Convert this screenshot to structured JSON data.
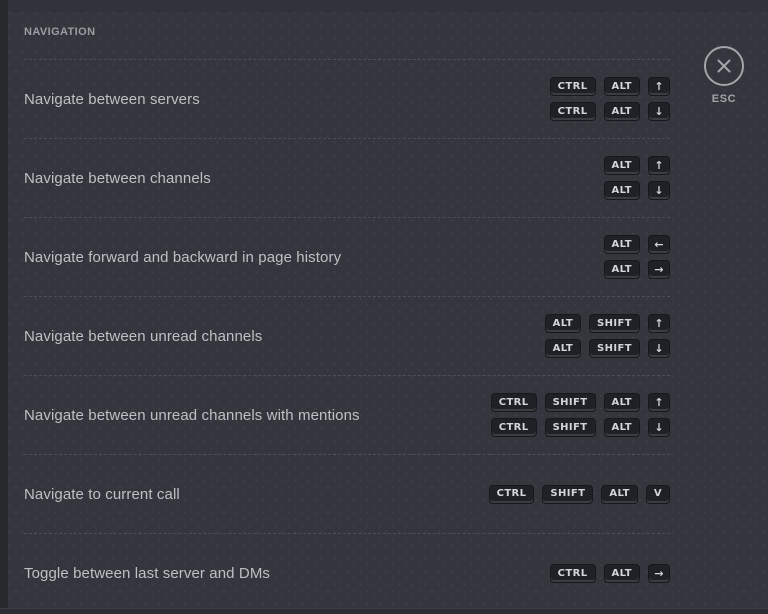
{
  "section": {
    "title": "NAVIGATION"
  },
  "close": {
    "esc_label": "ESC",
    "close_icon": "x-in-circle"
  },
  "colors": {
    "background": "#33363c",
    "keycap_background": "#1e2125",
    "keycap_text": "#d3d5d8",
    "label_text": "#bdc0c4",
    "header_text": "#9a9da2",
    "close_outline": "#a2a5a9"
  },
  "rows": [
    {
      "label": "Navigate between servers",
      "combos": [
        [
          "CTRL",
          "ALT",
          "↑"
        ],
        [
          "CTRL",
          "ALT",
          "↓"
        ]
      ]
    },
    {
      "label": "Navigate between channels",
      "combos": [
        [
          "ALT",
          "↑"
        ],
        [
          "ALT",
          "↓"
        ]
      ]
    },
    {
      "label": "Navigate forward and backward in page history",
      "combos": [
        [
          "ALT",
          "←"
        ],
        [
          "ALT",
          "→"
        ]
      ]
    },
    {
      "label": "Navigate between unread channels",
      "combos": [
        [
          "ALT",
          "SHIFT",
          "↑"
        ],
        [
          "ALT",
          "SHIFT",
          "↓"
        ]
      ]
    },
    {
      "label": "Navigate between unread channels with mentions",
      "combos": [
        [
          "CTRL",
          "SHIFT",
          "ALT",
          "↑"
        ],
        [
          "CTRL",
          "SHIFT",
          "ALT",
          "↓"
        ]
      ]
    },
    {
      "label": "Navigate to current call",
      "combos": [
        [
          "CTRL",
          "SHIFT",
          "ALT",
          "V"
        ]
      ]
    },
    {
      "label": "Toggle between last server and DMs",
      "combos": [
        [
          "CTRL",
          "ALT",
          "→"
        ]
      ]
    }
  ]
}
